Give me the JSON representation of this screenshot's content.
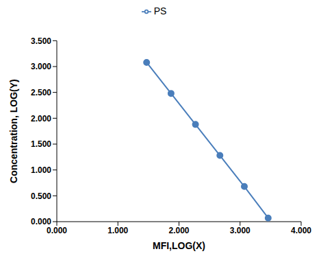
{
  "chart_data": {
    "type": "line",
    "x_label": "MFI,LOG(X)",
    "y_label": "Concentration,  LOG(Y)",
    "x": [
      1.47,
      1.87,
      2.27,
      2.67,
      3.07,
      3.46
    ],
    "series": [
      {
        "name": "PS",
        "color": "#4a7ebb",
        "marker": "circle",
        "line_style": "solid",
        "values": [
          3.08,
          2.48,
          1.88,
          1.28,
          0.68,
          0.07
        ]
      }
    ],
    "xlim": [
      0,
      4
    ],
    "ylim": [
      0,
      3.5
    ],
    "xticks": [
      {
        "value": 0,
        "label": "0.000"
      },
      {
        "value": 1,
        "label": "1.000"
      },
      {
        "value": 2,
        "label": "2.000"
      },
      {
        "value": 3,
        "label": "3.000"
      },
      {
        "value": 4,
        "label": "4.000"
      }
    ],
    "yticks": [
      {
        "value": 0,
        "label": "0.000"
      },
      {
        "value": 0.5,
        "label": "0.500"
      },
      {
        "value": 1,
        "label": "1.000"
      },
      {
        "value": 1.5,
        "label": "1.500"
      },
      {
        "value": 2,
        "label": "2.000"
      },
      {
        "value": 2.5,
        "label": "2.500"
      },
      {
        "value": 3,
        "label": "3.000"
      },
      {
        "value": 3.5,
        "label": "3.500"
      }
    ],
    "legend": "top",
    "grid": false
  }
}
